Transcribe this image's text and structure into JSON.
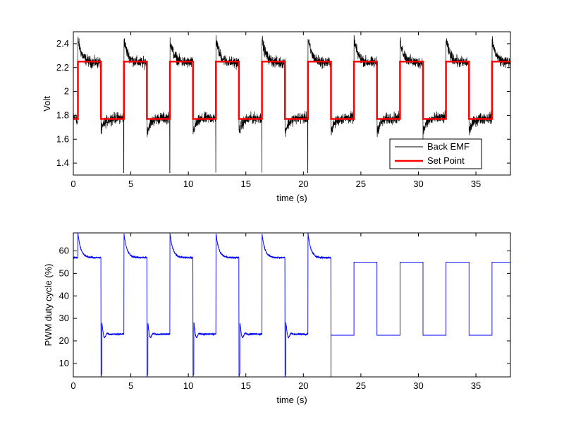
{
  "chart_data": [
    {
      "type": "line",
      "xlabel": "time (s)",
      "ylabel": "Volt",
      "xlim": [
        0,
        38
      ],
      "ylim": [
        1.3,
        2.5
      ],
      "xticks": [
        0,
        5,
        10,
        15,
        20,
        25,
        30,
        35
      ],
      "yticks": [
        1.4,
        1.6,
        1.8,
        2.0,
        2.2,
        2.4
      ],
      "ytick_labels": [
        "1.4",
        "1.6",
        "1.8",
        "2",
        "2.2",
        "2.4"
      ],
      "grid": false,
      "legend_position": "lower-right",
      "series": [
        {
          "name": "Back EMF",
          "color": "#000000",
          "style": "noisy-square",
          "high": 2.24,
          "low": 1.78,
          "overshoot": 0.2,
          "undershoot": 0.12
        },
        {
          "name": "Set Point",
          "color": "#ff0000",
          "style": "square",
          "high": 2.25,
          "low": 1.77,
          "x_edges": [
            0,
            0.4,
            2.4,
            4.4,
            6.4,
            8.4,
            10.4,
            12.4,
            14.4,
            16.4,
            18.4,
            20.4,
            22.4,
            24.4,
            26.4,
            28.4,
            30.4,
            32.4,
            34.4,
            36.4,
            38
          ],
          "start_level": "low"
        }
      ]
    },
    {
      "type": "line",
      "xlabel": "time (s)",
      "ylabel": "PWM duty cycle (%)",
      "xlim": [
        0,
        38
      ],
      "ylim": [
        4,
        68
      ],
      "xticks": [
        0,
        5,
        10,
        15,
        20,
        25,
        30,
        35
      ],
      "yticks": [
        10,
        20,
        30,
        40,
        50,
        60
      ],
      "grid": false,
      "series": [
        {
          "color": "#0000ff",
          "segments": [
            {
              "x_start": 0,
              "x_end": 22.4,
              "high": 57,
              "low": 23,
              "peak": 68,
              "dip": 4,
              "style": "controlled"
            },
            {
              "x_start": 22.4,
              "x_end": 38,
              "high": 55,
              "low": 22.5,
              "style": "square"
            }
          ]
        }
      ]
    }
  ]
}
